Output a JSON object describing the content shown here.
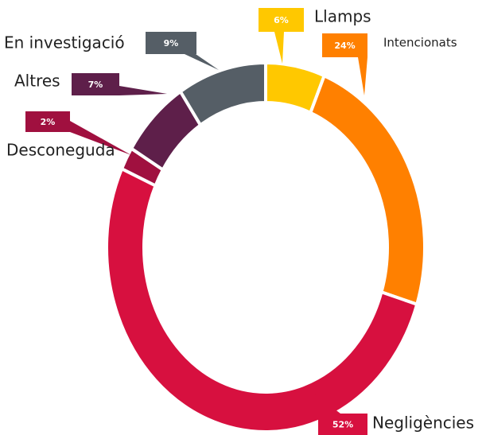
{
  "chart_data": {
    "type": "pie",
    "donut": true,
    "categories": [
      "Llamps",
      "Intencionats",
      "Negligències",
      "Desconeguda",
      "Altres",
      "En investigació"
    ],
    "values": [
      6,
      24,
      52,
      2,
      7,
      9
    ],
    "value_labels": [
      "6%",
      "24%",
      "52%",
      "2%",
      "7%",
      "9%"
    ],
    "colors": [
      "#ffc800",
      "#ff8000",
      "#d7103f",
      "#a0103f",
      "#5e1f4a",
      "#555e66"
    ]
  }
}
